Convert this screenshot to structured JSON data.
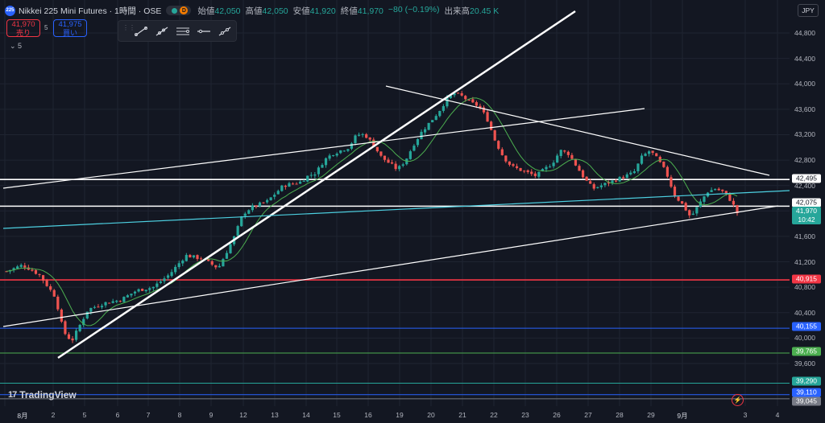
{
  "header": {
    "logo_text": "225",
    "title": "Nikkei 225 Mini Futures · 1時間 · OSE",
    "source_badge": "D",
    "ohlc": [
      {
        "label": "始値",
        "value": "42,050"
      },
      {
        "label": "高値",
        "value": "42,050"
      },
      {
        "label": "安値",
        "value": "41,920"
      },
      {
        "label": "終値",
        "value": "41,970"
      },
      {
        "label": "",
        "value": "−80 (−0.19%)"
      },
      {
        "label": "出来高",
        "value": "20.45 K"
      }
    ]
  },
  "trade": {
    "sell_price": "41,970",
    "sell_label": "売り",
    "spread": "5",
    "buy_price": "41,975",
    "buy_label": "買い"
  },
  "indicator_toggle": "5",
  "currency": "JPY",
  "colors": {
    "background": "#131722",
    "up": "#26a69a",
    "down": "#ef5350",
    "ma": "#4caf50",
    "red_line": "#f23645",
    "blue_line": "#2962ff",
    "green_line": "#4caf50",
    "teal_line": "#26c6da",
    "trend": "#ffffff"
  },
  "chart_data": {
    "type": "candlestick",
    "y_axis": {
      "labels": [
        "44,800",
        "44,400",
        "44,000",
        "43,600",
        "43,200",
        "42,800",
        "42,400",
        "42,000",
        "41,600",
        "41,200",
        "40,800",
        "40,400",
        "40,000",
        "39,600"
      ],
      "ylim": [
        38900,
        45150
      ]
    },
    "x_axis": {
      "labels": [
        "8月",
        "2",
        "5",
        "6",
        "7",
        "8",
        "9",
        "12",
        "13",
        "14",
        "15",
        "16",
        "19",
        "20",
        "21",
        "22",
        "23",
        "26",
        "27",
        "28",
        "29",
        "9月",
        "3",
        "4"
      ]
    },
    "price_badges": [
      {
        "value": "42,495",
        "kind": "white"
      },
      {
        "value": "42,075",
        "kind": "white"
      },
      {
        "value": "41,970",
        "sub": "10:42",
        "kind": "last"
      },
      {
        "value": "40,915",
        "kind": "red"
      },
      {
        "value": "40,155",
        "kind": "blue"
      },
      {
        "value": "39,765",
        "kind": "green"
      },
      {
        "value": "39,290",
        "kind": "teal"
      },
      {
        "value": "39,110",
        "kind": "blue"
      },
      {
        "value": "39,045",
        "kind": "gray"
      }
    ],
    "horizontal_lines": [
      {
        "price": 42495,
        "color": "white"
      },
      {
        "price": 42075,
        "color": "white"
      },
      {
        "price": 40915,
        "color": "red"
      },
      {
        "price": 40155,
        "color": "blue"
      },
      {
        "price": 39765,
        "color": "green"
      },
      {
        "price": 39290,
        "color": "teal"
      },
      {
        "price": 39110,
        "color": "blue"
      },
      {
        "price": 39045,
        "color": "gray"
      }
    ],
    "close_path": [
      [
        0,
        41050
      ],
      [
        2,
        41150
      ],
      [
        4,
        41000
      ],
      [
        6,
        40650
      ],
      [
        7,
        40100
      ],
      [
        8,
        39950
      ],
      [
        9,
        40200
      ],
      [
        10,
        40450
      ],
      [
        12,
        40550
      ],
      [
        14,
        40600
      ],
      [
        16,
        40750
      ],
      [
        18,
        40800
      ],
      [
        20,
        41000
      ],
      [
        22,
        41300
      ],
      [
        24,
        41250
      ],
      [
        26,
        41100
      ],
      [
        28,
        41600
      ],
      [
        29,
        41950
      ],
      [
        30,
        42050
      ],
      [
        32,
        42150
      ],
      [
        34,
        42400
      ],
      [
        36,
        42450
      ],
      [
        37,
        42550
      ],
      [
        38,
        42600
      ],
      [
        39,
        42800
      ],
      [
        40,
        42900
      ],
      [
        42,
        43000
      ],
      [
        43,
        43200
      ],
      [
        44,
        43200
      ],
      [
        45,
        43050
      ],
      [
        46,
        42850
      ],
      [
        47,
        42750
      ],
      [
        48,
        42650
      ],
      [
        49,
        42800
      ],
      [
        50,
        43050
      ],
      [
        51,
        43250
      ],
      [
        52,
        43400
      ],
      [
        53,
        43550
      ],
      [
        54,
        43750
      ],
      [
        55,
        43850
      ],
      [
        56,
        43800
      ],
      [
        57,
        43700
      ],
      [
        58,
        43650
      ],
      [
        59,
        43450
      ],
      [
        60,
        43100
      ],
      [
        61,
        42850
      ],
      [
        62,
        42700
      ],
      [
        63,
        42650
      ],
      [
        64,
        42600
      ],
      [
        65,
        42550
      ],
      [
        66,
        42650
      ],
      [
        67,
        42750
      ],
      [
        68,
        42950
      ],
      [
        69,
        42900
      ],
      [
        70,
        42700
      ],
      [
        71,
        42500
      ],
      [
        72,
        42350
      ],
      [
        73,
        42400
      ],
      [
        74,
        42450
      ],
      [
        75,
        42500
      ],
      [
        76,
        42550
      ],
      [
        77,
        42600
      ],
      [
        78,
        42850
      ],
      [
        79,
        42950
      ],
      [
        80,
        42800
      ],
      [
        81,
        42600
      ],
      [
        82,
        42250
      ],
      [
        83,
        42100
      ],
      [
        84,
        41900
      ],
      [
        85,
        42100
      ],
      [
        86,
        42300
      ],
      [
        87,
        42350
      ],
      [
        88,
        42300
      ],
      [
        89,
        42150
      ],
      [
        89.7,
        41970
      ]
    ],
    "n_bars": 200,
    "day_ticks": [
      0,
      2,
      4,
      6,
      8,
      10,
      12,
      14,
      16,
      18,
      20,
      22,
      24,
      26,
      28,
      30,
      32,
      34,
      36,
      38,
      40,
      42,
      44,
      46
    ],
    "ma_lag": 3
  }
}
